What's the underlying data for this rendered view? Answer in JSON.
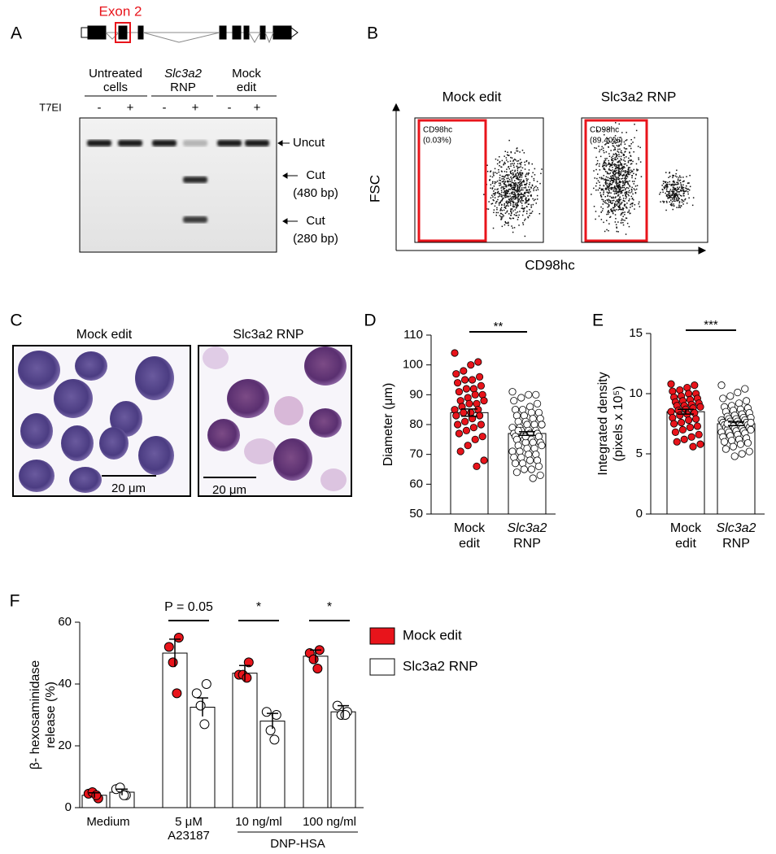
{
  "figure": {
    "letters": [
      "A",
      "B",
      "C",
      "D",
      "E",
      "F"
    ],
    "A": {
      "exon": "Exon 2",
      "lanes": [
        [
          "Untreated",
          "cells"
        ],
        [
          "Slc3a2",
          "RNP"
        ],
        [
          "Mock",
          "edit"
        ]
      ],
      "enzyme": "T7EI",
      "treatment": [
        "-",
        "+",
        "-",
        "+",
        "-",
        "+"
      ],
      "bands": [
        [
          "Uncut"
        ],
        [
          "Cut",
          "(480 bp)"
        ],
        [
          "Cut",
          "(280 bp)"
        ]
      ]
    },
    "B": {
      "plots": [
        "Mock edit",
        "Slc3a2 RNP"
      ],
      "ylabel": "FSC",
      "xlabel": "CD98hc",
      "gates": [
        [
          "CD98hc",
          "(0.03%)"
        ],
        [
          "CD98hc",
          "(89.40%)"
        ]
      ]
    },
    "C": {
      "images": [
        "Mock edit",
        "Slc3a2 RNP"
      ],
      "scale_bars": [
        "20 μm",
        "20 μm"
      ]
    }
  },
  "chart_data": [
    {
      "type": "dot_bar",
      "ylabel": [
        "Diameter (μm)"
      ],
      "categories": [
        [
          "Mock",
          "edit"
        ],
        [
          "Slc3a2",
          "RNP"
        ]
      ],
      "values": [
        84,
        77
      ],
      "errors": [
        1.2,
        0.6
      ],
      "point_colors": [
        "#e8141b",
        "#ffffff"
      ],
      "points": [
        [
          104,
          101,
          100,
          98,
          97,
          96,
          95,
          95,
          94,
          93,
          92,
          92,
          91,
          90,
          90,
          89,
          88,
          88,
          87,
          87,
          86,
          85,
          85,
          84,
          84,
          83,
          83,
          82,
          81,
          80,
          80,
          79,
          78,
          77,
          76,
          75,
          73,
          71,
          68,
          66
        ],
        [
          91,
          90,
          90,
          89,
          88,
          87,
          86,
          85,
          85,
          84,
          84,
          83,
          83,
          82,
          82,
          81,
          81,
          80,
          80,
          80,
          79,
          79,
          78,
          78,
          78,
          77,
          77,
          77,
          76,
          76,
          76,
          75,
          75,
          75,
          74,
          74,
          74,
          73,
          73,
          72,
          72,
          71,
          71,
          70,
          70,
          69,
          69,
          68,
          68,
          67,
          67,
          66,
          65,
          65,
          64,
          63,
          62,
          76,
          78,
          80
        ]
      ],
      "ylim": [
        50,
        110
      ],
      "yticks": [
        50,
        60,
        70,
        80,
        90,
        100,
        110
      ],
      "significance": "**"
    },
    {
      "type": "dot_bar",
      "ylabel": [
        "Integrated density",
        "(pixels x 10⁵)"
      ],
      "categories": [
        [
          "Mock",
          "edit"
        ],
        [
          "Slc3a2",
          "RNP"
        ]
      ],
      "values": [
        8.5,
        7.5
      ],
      "errors": [
        0.2,
        0.15
      ],
      "point_colors": [
        "#e8141b",
        "#ffffff"
      ],
      "points": [
        [
          10.8,
          10.7,
          10.5,
          10.3,
          10.2,
          10,
          10,
          9.8,
          9.7,
          9.6,
          9.5,
          9.4,
          9.3,
          9.2,
          9.1,
          9,
          9,
          8.9,
          8.8,
          8.7,
          8.6,
          8.5,
          8.4,
          8.3,
          8.2,
          8,
          7.9,
          7.8,
          7.6,
          7.5,
          7.3,
          7.2,
          7,
          6.8,
          6.6,
          6.4,
          6.2,
          6,
          5.8,
          5.6
        ],
        [
          10.7,
          10.4,
          10.1,
          9.8,
          9.6,
          9.4,
          9.2,
          9,
          8.9,
          8.8,
          8.7,
          8.6,
          8.5,
          8.4,
          8.3,
          8.2,
          8.1,
          8,
          8,
          7.9,
          7.9,
          7.8,
          7.8,
          7.7,
          7.7,
          7.6,
          7.6,
          7.5,
          7.5,
          7.4,
          7.4,
          7.3,
          7.3,
          7.2,
          7.2,
          7.1,
          7.1,
          7,
          7,
          6.9,
          6.9,
          6.8,
          6.8,
          6.7,
          6.6,
          6.5,
          6.4,
          6.3,
          6.2,
          6.1,
          6,
          5.9,
          5.8,
          5.6,
          5.4,
          5.2,
          5,
          4.8,
          7.5,
          7.6
        ]
      ],
      "ylim": [
        0,
        15
      ],
      "yticks": [
        0,
        5,
        10,
        15
      ],
      "significance": "***"
    },
    {
      "type": "grouped_dot_bar",
      "ylabel": [
        "β- hexosaminidase",
        "release (%)"
      ],
      "categories": [
        [
          "Medium"
        ],
        [
          "5 μM",
          "A23187"
        ],
        [
          "10 ng/ml"
        ],
        [
          "100 ng/ml"
        ]
      ],
      "group_label": "DNP-HSA",
      "series": [
        {
          "name": "Mock edit",
          "color": "#e8141b",
          "values": [
            4,
            50,
            43.5,
            49
          ],
          "errors": [
            0.8,
            4.5,
            2.5,
            2
          ],
          "points": [
            [
              3,
              4.5,
              5,
              4
            ],
            [
              55,
              52,
              47,
              37
            ],
            [
              47,
              43,
              43,
              42
            ],
            [
              51,
              50,
              48,
              45
            ]
          ]
        },
        {
          "name": "Slc3a2 RNP",
          "color": "#ffffff",
          "values": [
            5,
            32.5,
            28,
            31
          ],
          "errors": [
            1,
            3,
            2.5,
            2
          ],
          "points": [
            [
              4,
              6,
              6.5,
              4
            ],
            [
              40,
              37,
              33,
              27
            ],
            [
              30,
              31,
              25,
              22
            ],
            [
              31,
              33,
              30,
              30
            ]
          ]
        }
      ],
      "ylim": [
        0,
        60
      ],
      "yticks": [
        0,
        20,
        40,
        60
      ],
      "significance": [
        null,
        "P = 0.05",
        "*",
        "*"
      ]
    }
  ]
}
